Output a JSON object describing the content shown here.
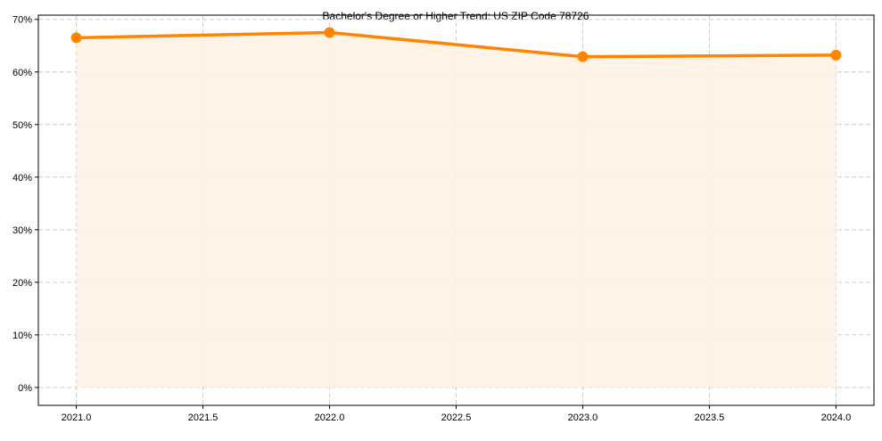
{
  "chart_data": {
    "type": "line",
    "title": "Bachelor's Degree or Higher Trend: US ZIP Code 78726",
    "xlabel": "",
    "ylabel": "",
    "x": [
      2021,
      2022,
      2023,
      2024
    ],
    "values": [
      66.5,
      67.5,
      62.9,
      63.2
    ],
    "xlim": [
      2020.85,
      2024.15
    ],
    "ylim": [
      -3.4,
      70.8
    ],
    "xticks": [
      "2021.0",
      "2021.5",
      "2022.0",
      "2022.5",
      "2023.0",
      "2023.5",
      "2024.0"
    ],
    "xtick_values": [
      2021,
      2021.5,
      2022,
      2022.5,
      2023,
      2023.5,
      2024
    ],
    "yticks": [
      "0%",
      "10%",
      "20%",
      "30%",
      "40%",
      "50%",
      "60%",
      "70%"
    ],
    "ytick_values": [
      0,
      10,
      20,
      30,
      40,
      50,
      60,
      70
    ],
    "grid": true,
    "fill_under": true,
    "colors": {
      "line": "#ff8400",
      "fill": "#fff1e3",
      "grid": "#cccccc"
    }
  }
}
